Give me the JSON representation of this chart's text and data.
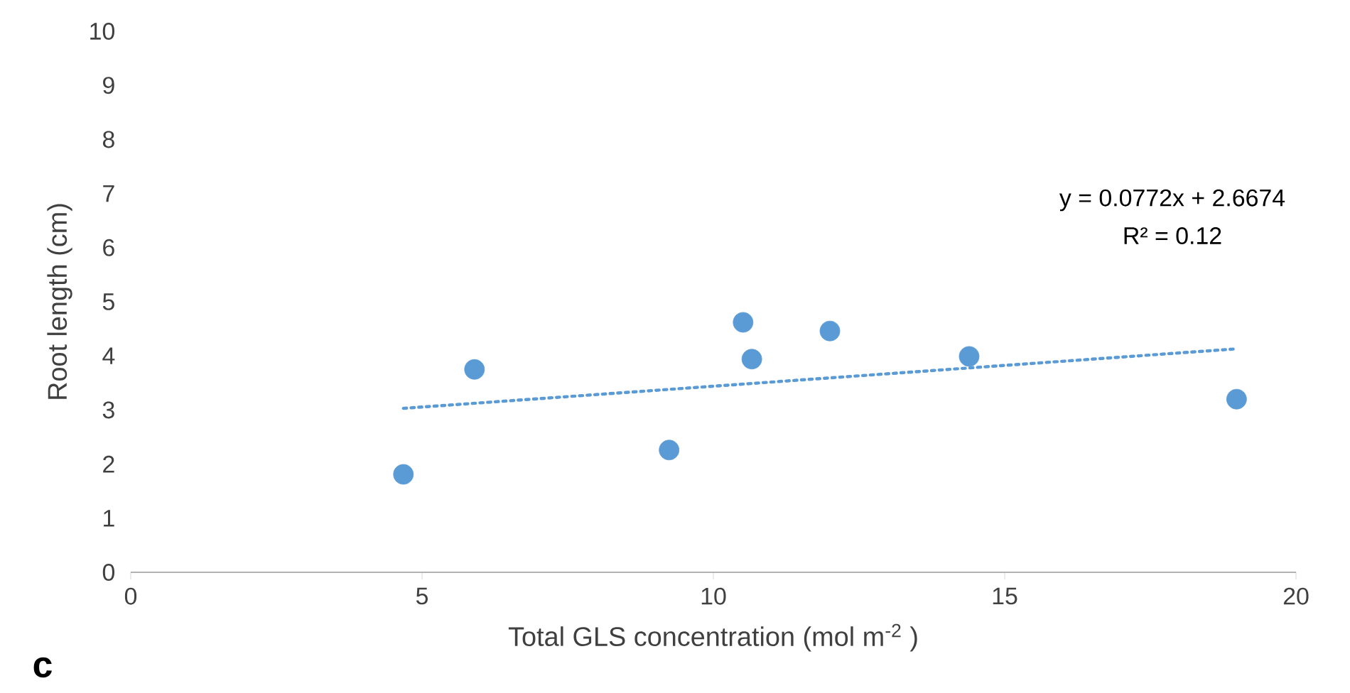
{
  "chart_data": {
    "type": "scatter",
    "xlabel": "Total GLS concentration (mol m$^{-2}$ )",
    "ylabel": "Root length (cm)",
    "annotations": [
      "y = 0.0772x + 2.6674",
      "R² = 0.12",
      "c"
    ],
    "series": [
      {
        "color": "#5b9bd5",
        "marker": "circle",
        "x": [
          4.68,
          5.9,
          9.24,
          10.51,
          10.66,
          12.0,
          14.39,
          18.98
        ],
        "values": [
          1.81,
          3.75,
          2.26,
          4.62,
          3.94,
          4.46,
          3.99,
          3.2
        ]
      },
      {
        "type": "line",
        "color": "#5b9bd5",
        "marker": "none",
        "line_style": "dotted",
        "x": [
          4.68,
          18.98
        ],
        "values": [
          3.03,
          4.13
        ]
      }
    ],
    "xlim": [
      0,
      20
    ],
    "ylim": [
      0,
      10
    ],
    "xticks": [
      0,
      5,
      10,
      15,
      20
    ],
    "yticks": [
      0,
      1,
      2,
      3,
      4,
      5,
      6,
      7,
      8,
      9,
      10
    ],
    "grid": false
  }
}
